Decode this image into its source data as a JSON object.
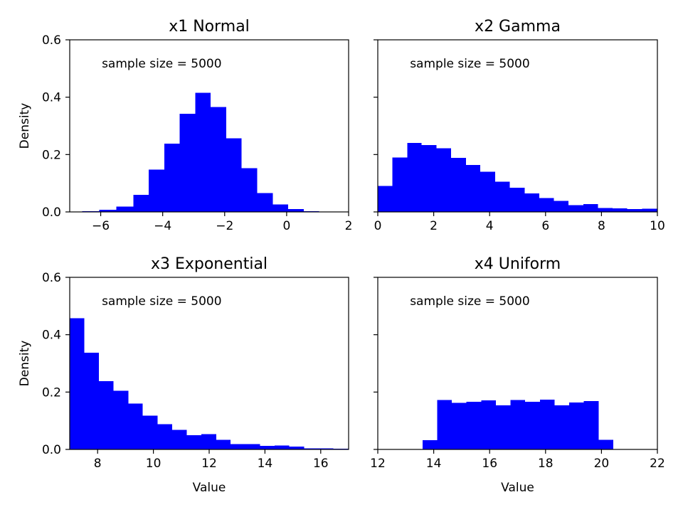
{
  "chart_data": [
    {
      "type": "bar",
      "title": "x1 Normal",
      "annotation": "sample size = 5000",
      "xlabel": "",
      "ylabel": "Density",
      "xlim": [
        -7,
        2
      ],
      "ylim": [
        0,
        0.6
      ],
      "xticks": [
        -6,
        -4,
        -2,
        0,
        2
      ],
      "xtick_labels": [
        "−6",
        "−4",
        "−2",
        "0",
        "2"
      ],
      "yticks": [
        0.0,
        0.2,
        0.4,
        0.6
      ],
      "ytick_labels": [
        "0.0",
        "0.2",
        "0.4",
        "0.6"
      ],
      "color": "#0000ff",
      "bin_edges": [
        -6.6,
        -6.05,
        -5.5,
        -4.95,
        -4.45,
        -3.95,
        -3.45,
        -2.95,
        -2.45,
        -1.95,
        -1.45,
        -0.95,
        -0.45,
        0.05,
        0.55,
        1.05
      ],
      "values": [
        0.002,
        0.008,
        0.018,
        0.06,
        0.148,
        0.238,
        0.342,
        0.415,
        0.366,
        0.256,
        0.152,
        0.066,
        0.026,
        0.01,
        0.002
      ]
    },
    {
      "type": "bar",
      "title": "x2 Gamma",
      "annotation": "sample size = 5000",
      "xlabel": "",
      "ylabel": "",
      "xlim": [
        0,
        10
      ],
      "ylim": [
        0,
        0.6
      ],
      "xticks": [
        0,
        2,
        4,
        6,
        8,
        10
      ],
      "xtick_labels": [
        "0",
        "2",
        "4",
        "6",
        "8",
        "10"
      ],
      "yticks": [
        0.0,
        0.2,
        0.4,
        0.6
      ],
      "ytick_labels": [
        "",
        "",
        "",
        ""
      ],
      "color": "#0000ff",
      "bin_edges": [
        0,
        0.52,
        1.05,
        1.57,
        2.1,
        2.62,
        3.15,
        3.67,
        4.2,
        4.72,
        5.25,
        5.77,
        6.3,
        6.82,
        7.35,
        7.87,
        8.4,
        8.92,
        9.45,
        10.0
      ],
      "values": [
        0.09,
        0.19,
        0.241,
        0.233,
        0.222,
        0.188,
        0.164,
        0.14,
        0.105,
        0.084,
        0.064,
        0.048,
        0.038,
        0.024,
        0.027,
        0.014,
        0.013,
        0.01,
        0.011
      ]
    },
    {
      "type": "bar",
      "title": "x3 Exponential",
      "annotation": "sample size = 5000",
      "xlabel": "Value",
      "ylabel": "Density",
      "xlim": [
        7,
        17
      ],
      "ylim": [
        0,
        0.6
      ],
      "xticks": [
        8,
        10,
        12,
        14,
        16
      ],
      "xtick_labels": [
        "8",
        "10",
        "12",
        "14",
        "16"
      ],
      "yticks": [
        0.0,
        0.2,
        0.4,
        0.6
      ],
      "ytick_labels": [
        "0.0",
        "0.2",
        "0.4",
        "0.6"
      ],
      "color": "#0000ff",
      "bin_edges": [
        7,
        7.52,
        8.05,
        8.57,
        9.1,
        9.62,
        10.15,
        10.67,
        11.2,
        11.72,
        12.25,
        12.77,
        13.3,
        13.82,
        14.35,
        14.87,
        15.4,
        15.92,
        16.45,
        17.0
      ],
      "values": [
        0.458,
        0.337,
        0.238,
        0.204,
        0.16,
        0.118,
        0.088,
        0.068,
        0.05,
        0.053,
        0.033,
        0.019,
        0.019,
        0.012,
        0.014,
        0.01,
        0.004,
        0.004,
        0.003
      ]
    },
    {
      "type": "bar",
      "title": "x4 Uniform",
      "annotation": "sample size = 5000",
      "xlabel": "Value",
      "ylabel": "",
      "xlim": [
        12,
        22
      ],
      "ylim": [
        0,
        0.6
      ],
      "xticks": [
        12,
        14,
        16,
        18,
        20,
        22
      ],
      "xtick_labels": [
        "12",
        "14",
        "16",
        "18",
        "20",
        "22"
      ],
      "yticks": [
        0.0,
        0.2,
        0.4,
        0.6
      ],
      "ytick_labels": [
        "",
        "",
        "",
        ""
      ],
      "color": "#0000ff",
      "bin_edges": [
        13.6,
        14.12,
        14.65,
        15.17,
        15.7,
        16.22,
        16.75,
        17.27,
        17.8,
        18.32,
        18.85,
        19.37,
        19.9,
        20.42
      ],
      "values": [
        0.032,
        0.172,
        0.162,
        0.166,
        0.171,
        0.154,
        0.172,
        0.166,
        0.174,
        0.154,
        0.164,
        0.168,
        0.034
      ]
    }
  ]
}
